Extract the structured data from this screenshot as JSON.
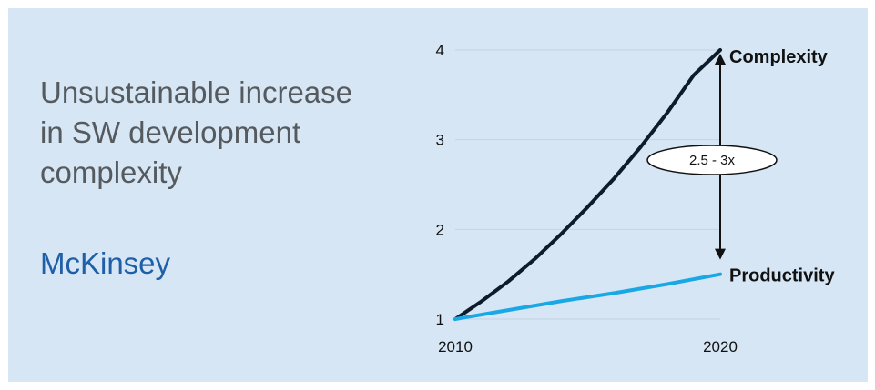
{
  "slide": {
    "headline": "Unsustainable increase\nin SW development\ncomplexity",
    "source": "McKinsey"
  },
  "chart_data": {
    "type": "line",
    "title": "",
    "xlabel": "",
    "ylabel": "",
    "x_ticks": [
      "2010",
      "2020"
    ],
    "y_ticks": [
      "1",
      "2",
      "3",
      "4"
    ],
    "xlim": [
      2010,
      2020
    ],
    "ylim": [
      1,
      4
    ],
    "grid": "horizontal",
    "series": [
      {
        "name": "Complexity",
        "color": "#0d1b2a",
        "points": [
          [
            2010,
            1.0
          ],
          [
            2011,
            1.2
          ],
          [
            2012,
            1.42
          ],
          [
            2013,
            1.67
          ],
          [
            2014,
            1.95
          ],
          [
            2015,
            2.25
          ],
          [
            2016,
            2.57
          ],
          [
            2017,
            2.92
          ],
          [
            2018,
            3.3
          ],
          [
            2019,
            3.72
          ],
          [
            2020,
            4.0
          ]
        ]
      },
      {
        "name": "Productivity",
        "color": "#1aa7e6",
        "points": [
          [
            2010,
            1.0
          ],
          [
            2012,
            1.1
          ],
          [
            2014,
            1.2
          ],
          [
            2016,
            1.29
          ],
          [
            2018,
            1.39
          ],
          [
            2020,
            1.5
          ]
        ]
      }
    ],
    "annotation": {
      "label": "2.5 - 3x",
      "x": 2020,
      "y_from": 4.0,
      "y_to": 1.5
    }
  }
}
